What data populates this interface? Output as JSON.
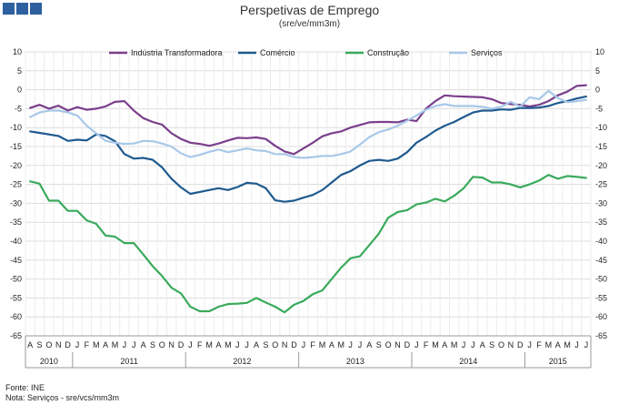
{
  "header": {
    "title": "Perspetivas de Emprego",
    "subtitle": "(sre/ve/mm3m)",
    "brand_color": "#2e5f9e"
  },
  "footer": {
    "source": "Fonte: INE",
    "note": "Nota: Serviços - sre/vcs/mm3m"
  },
  "chart_data": {
    "type": "line",
    "title": "Perspetivas de Emprego",
    "subtitle": "(sre/ve/mm3m)",
    "ylim": [
      -65,
      10
    ],
    "yticks": [
      10,
      5,
      0,
      -5,
      -10,
      -15,
      -20,
      -25,
      -30,
      -35,
      -40,
      -45,
      -50,
      -55,
      -60,
      -65
    ],
    "grid": true,
    "legend_position": "top",
    "x_month_labels": [
      "A",
      "S",
      "O",
      "N",
      "D",
      "J",
      "F",
      "M",
      "A",
      "M",
      "J",
      "J",
      "A",
      "S",
      "O",
      "N",
      "D",
      "J",
      "F",
      "M",
      "A",
      "M",
      "J",
      "J",
      "A",
      "S",
      "O",
      "N",
      "D",
      "J",
      "F",
      "M",
      "A",
      "M",
      "J",
      "J",
      "A",
      "S",
      "O",
      "N",
      "D",
      "J",
      "F",
      "M",
      "A",
      "M",
      "J",
      "J",
      "A",
      "S",
      "O",
      "N",
      "D",
      "J",
      "F",
      "M",
      "A",
      "M",
      "J",
      "J"
    ],
    "x_year_groups": [
      {
        "label": "2010",
        "start": 0,
        "count": 5
      },
      {
        "label": "2011",
        "start": 5,
        "count": 12
      },
      {
        "label": "2012",
        "start": 17,
        "count": 12
      },
      {
        "label": "2013",
        "start": 29,
        "count": 12
      },
      {
        "label": "2014",
        "start": 41,
        "count": 12
      },
      {
        "label": "2015",
        "start": 53,
        "count": 7
      }
    ],
    "series": [
      {
        "name": "Indústria Transformadora",
        "color": "#7b3f8c",
        "values": [
          -4.8,
          -4.0,
          -5.0,
          -4.2,
          -5.5,
          -4.6,
          -5.3,
          -5.0,
          -4.4,
          -3.2,
          -3.0,
          -5.5,
          -7.5,
          -8.5,
          -9.2,
          -11.5,
          -13.0,
          -14.0,
          -14.3,
          -14.8,
          -14.2,
          -13.4,
          -12.7,
          -12.8,
          -12.6,
          -13.0,
          -14.8,
          -16.3,
          -17.0,
          -15.5,
          -14.0,
          -12.3,
          -11.5,
          -11.0,
          -10.0,
          -9.3,
          -8.6,
          -8.5,
          -8.5,
          -8.6,
          -7.9,
          -8.3,
          -5.0,
          -3.0,
          -1.5,
          -1.7,
          -1.8,
          -1.9,
          -2.0,
          -2.5,
          -3.5,
          -3.8,
          -4.0,
          -4.4,
          -4.0,
          -3.0,
          -1.5,
          -0.5,
          1.0,
          1.2
        ]
      },
      {
        "name": "Comércio",
        "color": "#1f5a8f",
        "values": [
          -11.0,
          -11.4,
          -11.8,
          -12.2,
          -13.5,
          -13.2,
          -13.4,
          -11.8,
          -12.2,
          -13.6,
          -17.0,
          -18.2,
          -18.0,
          -18.5,
          -20.5,
          -23.5,
          -25.8,
          -27.5,
          -27.0,
          -26.5,
          -26.0,
          -26.5,
          -25.7,
          -24.6,
          -24.8,
          -26.0,
          -29.2,
          -29.6,
          -29.3,
          -28.5,
          -27.8,
          -26.5,
          -24.5,
          -22.5,
          -21.5,
          -20.0,
          -18.8,
          -18.5,
          -18.8,
          -18.2,
          -16.5,
          -14.0,
          -12.5,
          -10.8,
          -9.5,
          -8.5,
          -7.2,
          -6.0,
          -5.5,
          -5.5,
          -5.2,
          -5.3,
          -4.8,
          -4.8,
          -4.7,
          -4.3,
          -3.5,
          -3.0,
          -2.3,
          -1.8
        ]
      },
      {
        "name": "Construção",
        "color": "#3aaa5c",
        "values": [
          -24.2,
          -24.8,
          -29.3,
          -29.3,
          -32.0,
          -32.0,
          -34.5,
          -35.4,
          -38.5,
          -38.8,
          -40.5,
          -40.5,
          -43.5,
          -46.6,
          -49.2,
          -52.3,
          -53.8,
          -57.3,
          -58.5,
          -58.5,
          -57.3,
          -56.6,
          -56.5,
          -56.3,
          -55.0,
          -56.2,
          -57.3,
          -58.8,
          -56.8,
          -55.8,
          -54.0,
          -53.0,
          -50.0,
          -47.0,
          -44.5,
          -44.0,
          -41.0,
          -38.0,
          -33.8,
          -32.3,
          -31.8,
          -30.3,
          -29.8,
          -28.8,
          -29.5,
          -28.0,
          -26.0,
          -23.0,
          -23.2,
          -24.5,
          -24.5,
          -25.0,
          -25.8,
          -25.0,
          -24.0,
          -22.5,
          -23.5,
          -22.8,
          -23.0,
          -23.3
        ]
      },
      {
        "name": "Serviços",
        "color": "#a8c8e8",
        "values": [
          -7.2,
          -6.0,
          -5.5,
          -5.5,
          -6.0,
          -6.8,
          -9.5,
          -11.5,
          -13.5,
          -14.0,
          -14.3,
          -14.2,
          -13.5,
          -13.6,
          -14.2,
          -15.0,
          -16.8,
          -17.8,
          -17.2,
          -16.4,
          -15.8,
          -16.5,
          -16.0,
          -15.5,
          -16.0,
          -16.2,
          -17.0,
          -17.0,
          -17.8,
          -18.0,
          -17.8,
          -17.5,
          -17.5,
          -17.0,
          -16.3,
          -14.5,
          -12.5,
          -11.2,
          -10.5,
          -9.5,
          -8.2,
          -6.8,
          -5.3,
          -4.3,
          -3.8,
          -4.3,
          -4.3,
          -4.3,
          -4.5,
          -5.0,
          -4.5,
          -3.2,
          -4.5,
          -2.0,
          -2.5,
          -0.3,
          -2.2,
          -3.3,
          -3.0,
          -2.7
        ]
      }
    ]
  }
}
